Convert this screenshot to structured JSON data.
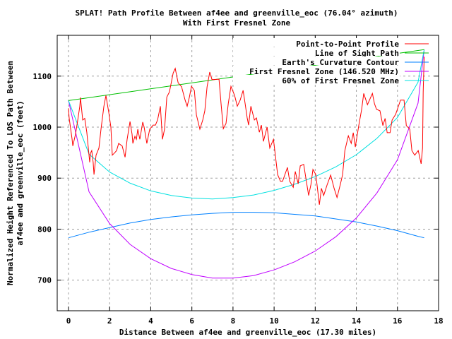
{
  "chart_data": {
    "type": "line",
    "title": "SPLAT! Path Profile Between af4ee and greenville_eoc (76.04° azimuth)",
    "subtitle": "With First Fresnel Zone",
    "xlabel": "Distance Between af4ee and greenville_eoc (17.30 miles)",
    "ylabel_lines": [
      "Normalized Height Referenced To LOS Path Between",
      "af4ee and greenville_eoc (feet)"
    ],
    "xlim": [
      -0.55,
      18
    ],
    "ylim": [
      640,
      1180
    ],
    "xticks": [
      0,
      2,
      4,
      6,
      8,
      10,
      12,
      14,
      16,
      18
    ],
    "yticks": [
      700,
      800,
      900,
      1000,
      1100
    ],
    "grid": true,
    "legend_position": "top-right",
    "series": [
      {
        "name": "Point-to-Point Profile",
        "color": "#ff0000",
        "x": [
          0,
          0.03,
          0.17,
          0.21,
          0.34,
          0.45,
          0.55,
          0.58,
          0.69,
          0.79,
          0.89,
          1.03,
          1.07,
          1.13,
          1.2,
          1.24,
          1.34,
          1.48,
          1.58,
          1.72,
          1.82,
          1.96,
          2.06,
          2.13,
          2.23,
          2.34,
          2.44,
          2.61,
          2.75,
          2.85,
          2.99,
          3.09,
          3.13,
          3.23,
          3.3,
          3.37,
          3.47,
          3.61,
          3.68,
          3.81,
          3.95,
          4.12,
          4.23,
          4.33,
          4.47,
          4.57,
          4.67,
          4.78,
          4.91,
          5.09,
          5.19,
          5.33,
          5.5,
          5.67,
          5.77,
          5.88,
          5.98,
          6.12,
          6.22,
          6.39,
          6.53,
          6.63,
          6.74,
          6.87,
          6.98,
          7.32,
          7.42,
          7.53,
          7.66,
          7.77,
          7.9,
          8.08,
          8.21,
          8.35,
          8.49,
          8.59,
          8.69,
          8.76,
          8.87,
          9.04,
          9.14,
          9.28,
          9.38,
          9.48,
          9.66,
          9.79,
          9.97,
          10.07,
          10.17,
          10.31,
          10.41,
          10.65,
          10.76,
          10.93,
          11.03,
          11.17,
          11.27,
          11.44,
          11.55,
          11.68,
          11.79,
          11.89,
          12.03,
          12.2,
          12.3,
          12.41,
          12.58,
          12.75,
          12.92,
          13.06,
          13.23,
          13.33,
          13.44,
          13.61,
          13.75,
          13.85,
          13.95,
          14.12,
          14.26,
          14.36,
          14.54,
          14.78,
          14.88,
          14.98,
          15.15,
          15.29,
          15.4,
          15.5,
          15.64,
          15.74,
          15.91,
          16.15,
          16.32,
          16.43,
          16.6,
          16.7,
          16.84,
          17.01,
          17.15,
          17.22,
          17.25,
          17.3
        ],
        "y": [
          1037,
          1018,
          977,
          963,
          986,
          1014,
          1041,
          1058,
          1014,
          1017,
          990,
          931,
          949,
          954,
          931,
          907,
          945,
          959,
          996,
          1041,
          1062,
          1028,
          1000,
          945,
          949,
          954,
          968,
          963,
          941,
          976,
          1011,
          986,
          968,
          982,
          976,
          996,
          976,
          1010,
          1000,
          968,
          996,
          1004,
          1004,
          1014,
          1041,
          976,
          996,
          1059,
          1069,
          1106,
          1115,
          1087,
          1079,
          1053,
          1041,
          1059,
          1080,
          1072,
          1024,
          996,
          1014,
          1032,
          1079,
          1108,
          1093,
          1094,
          1046,
          997,
          1007,
          1046,
          1080,
          1062,
          1041,
          1053,
          1072,
          1046,
          1018,
          1004,
          1041,
          1014,
          1018,
          990,
          1004,
          972,
          1000,
          959,
          976,
          941,
          907,
          894,
          894,
          921,
          894,
          882,
          913,
          889,
          924,
          927,
          899,
          866,
          887,
          917,
          907,
          848,
          880,
          866,
          887,
          906,
          880,
          862,
          889,
          907,
          954,
          983,
          968,
          989,
          961,
          1004,
          1035,
          1066,
          1044,
          1066,
          1046,
          1035,
          1032,
          1003,
          1017,
          989,
          989,
          1014,
          1025,
          1053,
          1053,
          1003,
          996,
          954,
          945,
          954,
          928,
          959,
          1069,
          1138
        ]
      },
      {
        "name": "Line of Sight Path",
        "color": "#00c000",
        "x": [
          0,
          17.3
        ],
        "y": [
          1052,
          1152
        ]
      },
      {
        "name": "Earth's Curvature Contour",
        "color": "#0080ff",
        "x": [
          0,
          1,
          2,
          3,
          4,
          5,
          6,
          7,
          8,
          9,
          10,
          11,
          12,
          13,
          14,
          15,
          16,
          17,
          17.3
        ],
        "y": [
          783,
          794,
          803,
          812,
          819,
          824,
          828,
          831,
          833,
          833,
          832,
          829,
          826,
          820,
          814,
          806,
          797,
          786,
          783
        ]
      },
      {
        "name": "First Fresnel Zone (146.520 MHz)",
        "color": "#c000ff",
        "x": [
          0,
          1,
          2,
          3,
          4,
          5,
          6,
          7,
          8,
          9,
          10,
          11,
          12,
          13,
          14,
          15,
          16,
          17,
          17.3
        ],
        "y": [
          1052,
          873,
          811,
          770,
          742,
          723,
          711,
          704,
          704,
          709,
          720,
          736,
          757,
          785,
          822,
          871,
          936,
          1047,
          1152
        ]
      },
      {
        "name": "60% of First Fresnel Zone",
        "color": "#00e0e0",
        "x": [
          0,
          1,
          2,
          3,
          4,
          5,
          6,
          7,
          8,
          9,
          10,
          11,
          12,
          13,
          14,
          15,
          16,
          17,
          17.3
        ],
        "y": [
          1052,
          947,
          912,
          890,
          875,
          866,
          861,
          859,
          862,
          867,
          876,
          888,
          903,
          922,
          946,
          978,
          1019,
          1088,
          1152
        ]
      }
    ]
  }
}
